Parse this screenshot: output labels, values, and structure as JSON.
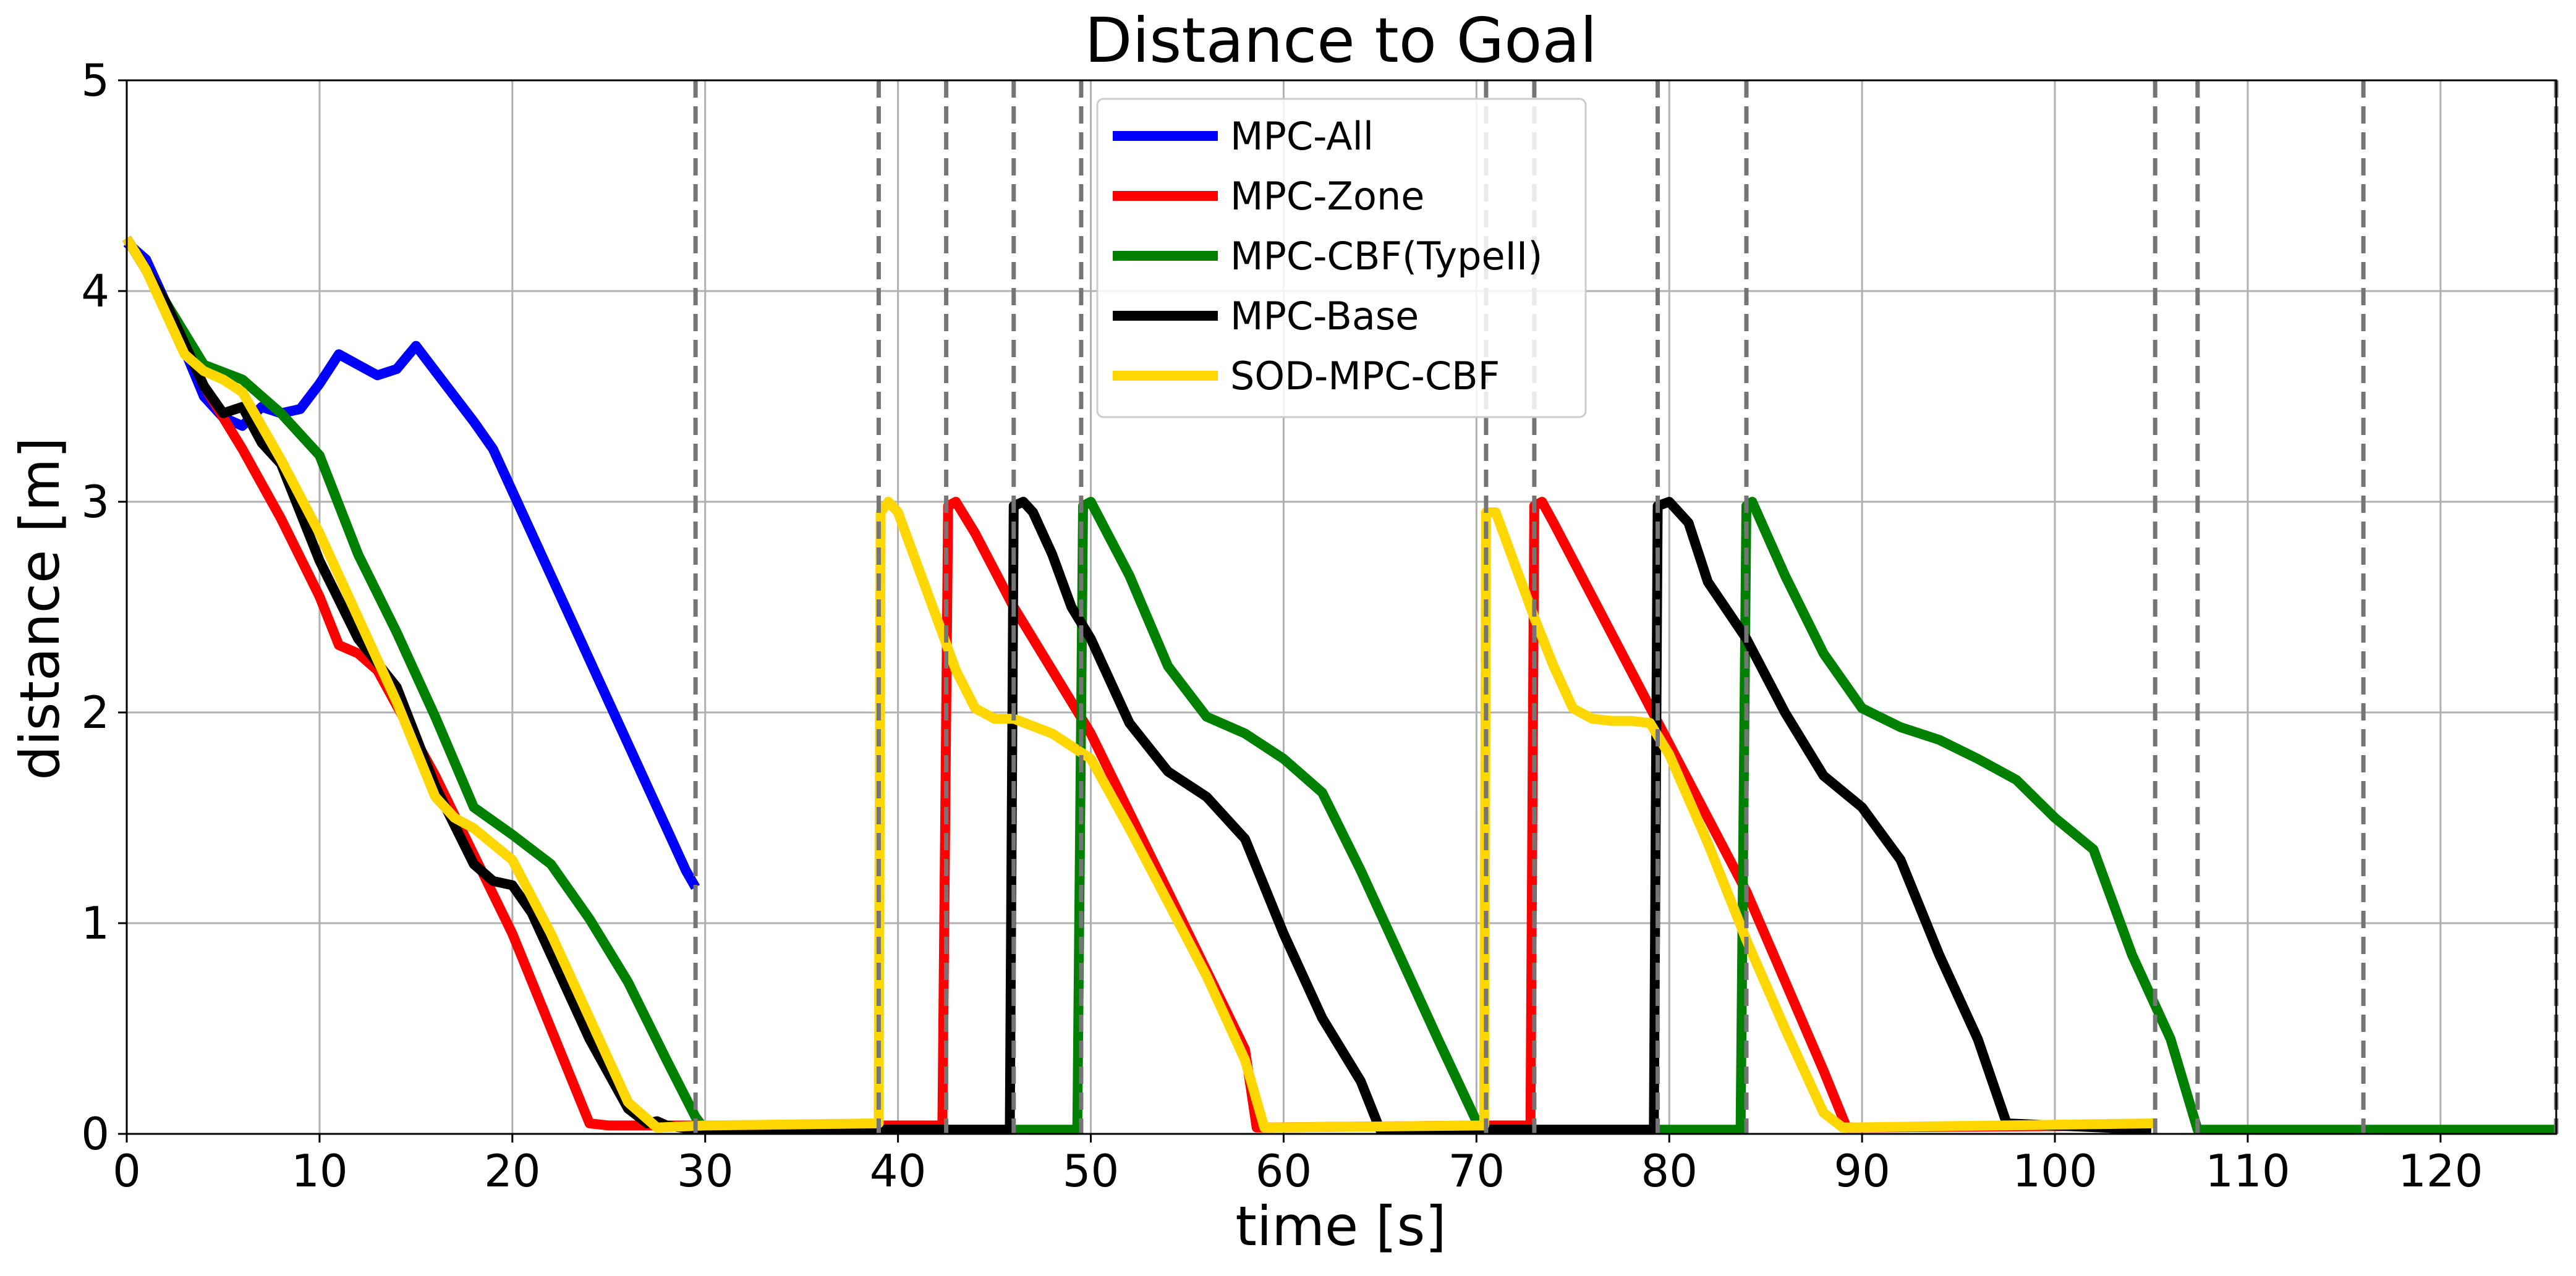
{
  "chart_data": {
    "type": "line",
    "title": "Distance to Goal",
    "xlabel": "time [s]",
    "ylabel": "distance [m]",
    "xlim": [
      0,
      126
    ],
    "ylim": [
      0,
      5
    ],
    "xticks": [
      0,
      10,
      20,
      30,
      40,
      50,
      60,
      70,
      80,
      90,
      100,
      110,
      120
    ],
    "yticks": [
      0,
      1,
      2,
      3,
      4,
      5
    ],
    "grid": true,
    "legend_position": "upper-center",
    "vertical_lines": [
      29.5,
      39,
      42.5,
      46,
      49.5,
      70.5,
      73,
      79.4,
      84,
      105.2,
      107.4,
      116,
      126
    ],
    "series": [
      {
        "name": "MPC-All",
        "color": "#0000ff",
        "x": [
          0,
          1,
          2,
          3,
          4,
          5,
          6,
          7,
          8,
          9,
          10,
          11,
          12,
          13,
          14,
          15,
          16,
          17,
          18,
          19,
          20,
          21,
          22,
          23,
          24,
          25,
          26,
          27,
          28,
          29,
          29.5
        ],
        "y": [
          4.23,
          4.15,
          3.95,
          3.72,
          3.5,
          3.4,
          3.36,
          3.45,
          3.42,
          3.44,
          3.56,
          3.7,
          3.65,
          3.6,
          3.63,
          3.74,
          3.62,
          3.5,
          3.38,
          3.25,
          3.05,
          2.85,
          2.65,
          2.45,
          2.25,
          2.05,
          1.85,
          1.65,
          1.45,
          1.25,
          1.17
        ]
      },
      {
        "name": "MPC-Zone",
        "color": "#ff0000",
        "x": [
          0,
          2,
          4,
          6,
          8,
          10,
          11,
          12,
          13,
          16,
          20,
          24,
          25,
          29.5,
          42.3,
          42.6,
          43,
          44,
          46,
          50,
          54,
          58,
          58.6,
          70.5,
          72.8,
          73,
          73.4,
          74,
          76,
          80,
          84,
          88,
          89.2,
          105
        ],
        "y": [
          4.25,
          3.95,
          3.55,
          3.25,
          2.92,
          2.55,
          2.32,
          2.28,
          2.2,
          1.7,
          0.95,
          0.05,
          0.04,
          0.04,
          0.04,
          2.98,
          3.0,
          2.85,
          2.5,
          1.9,
          1.15,
          0.4,
          0.03,
          0.04,
          0.04,
          2.98,
          3.0,
          2.9,
          2.55,
          1.85,
          1.15,
          0.3,
          0.03,
          0.04
        ]
      },
      {
        "name": "MPC-CBF(TypeII)",
        "color": "#008000",
        "x": [
          0,
          2,
          4,
          6,
          8,
          10,
          12,
          14,
          16,
          18,
          20,
          22,
          24,
          26,
          28,
          29.5,
          30,
          49.3,
          49.6,
          50,
          52,
          54,
          56,
          58,
          60,
          62,
          64,
          66,
          68,
          70,
          70.6,
          83.7,
          84,
          84.3,
          86,
          88,
          90,
          92,
          94,
          96,
          98,
          100,
          102,
          104,
          106,
          107.4,
          126
        ],
        "y": [
          4.25,
          3.95,
          3.65,
          3.58,
          3.42,
          3.22,
          2.75,
          2.38,
          1.98,
          1.55,
          1.42,
          1.28,
          1.02,
          0.72,
          0.35,
          0.08,
          0.02,
          0.02,
          2.98,
          3.0,
          2.65,
          2.22,
          1.98,
          1.9,
          1.78,
          1.62,
          1.25,
          0.85,
          0.45,
          0.06,
          0.02,
          0.02,
          2.98,
          3.0,
          2.65,
          2.28,
          2.02,
          1.93,
          1.87,
          1.78,
          1.68,
          1.5,
          1.35,
          0.85,
          0.45,
          0.02,
          0.02
        ]
      },
      {
        "name": "MPC-Base",
        "color": "#000000",
        "x": [
          0,
          2,
          4,
          5,
          6,
          7,
          8,
          10,
          12,
          14,
          16,
          18,
          19,
          20,
          21,
          22,
          24,
          26,
          27,
          27.5,
          28,
          29.5,
          45.8,
          46,
          46.5,
          47,
          48,
          49,
          50,
          52,
          54,
          56,
          58,
          60,
          62,
          64,
          65,
          70.5,
          79.2,
          79.4,
          80,
          81,
          82,
          84,
          86,
          88,
          90,
          92,
          94,
          96,
          97.5,
          105
        ],
        "y": [
          4.25,
          3.95,
          3.55,
          3.42,
          3.45,
          3.28,
          3.18,
          2.72,
          2.35,
          2.12,
          1.65,
          1.28,
          1.2,
          1.18,
          1.05,
          0.85,
          0.45,
          0.12,
          0.05,
          0.06,
          0.04,
          0.02,
          0.02,
          2.98,
          3.0,
          2.95,
          2.75,
          2.5,
          2.35,
          1.95,
          1.72,
          1.6,
          1.4,
          0.95,
          0.55,
          0.25,
          0.02,
          0.02,
          0.02,
          2.98,
          3.0,
          2.9,
          2.62,
          2.35,
          2.0,
          1.7,
          1.55,
          1.3,
          0.85,
          0.45,
          0.05,
          0.02
        ]
      },
      {
        "name": "SOD-MPC-CBF",
        "color": "#ffd700",
        "x": [
          0,
          1,
          2,
          3,
          4,
          5,
          6,
          8,
          10,
          12,
          14,
          16,
          17,
          18,
          20,
          22,
          24,
          26,
          27.5,
          30,
          39,
          39.1,
          39.5,
          40,
          41,
          42,
          43,
          44,
          45,
          46,
          48,
          50,
          52,
          54,
          56,
          58,
          59,
          70.4,
          70.5,
          71,
          72,
          73,
          74,
          75,
          76,
          77,
          78,
          79,
          80,
          82,
          84,
          86,
          88,
          89,
          105.2
        ],
        "y": [
          4.25,
          4.1,
          3.9,
          3.7,
          3.62,
          3.58,
          3.52,
          3.2,
          2.85,
          2.45,
          2.05,
          1.6,
          1.5,
          1.45,
          1.3,
          0.95,
          0.55,
          0.15,
          0.03,
          0.04,
          0.05,
          2.95,
          3.0,
          2.95,
          2.7,
          2.45,
          2.2,
          2.02,
          1.97,
          1.97,
          1.9,
          1.78,
          1.45,
          1.1,
          0.75,
          0.35,
          0.03,
          0.04,
          2.95,
          2.95,
          2.7,
          2.45,
          2.22,
          2.02,
          1.97,
          1.96,
          1.96,
          1.95,
          1.8,
          1.38,
          0.92,
          0.5,
          0.1,
          0.03,
          0.05
        ]
      }
    ]
  }
}
